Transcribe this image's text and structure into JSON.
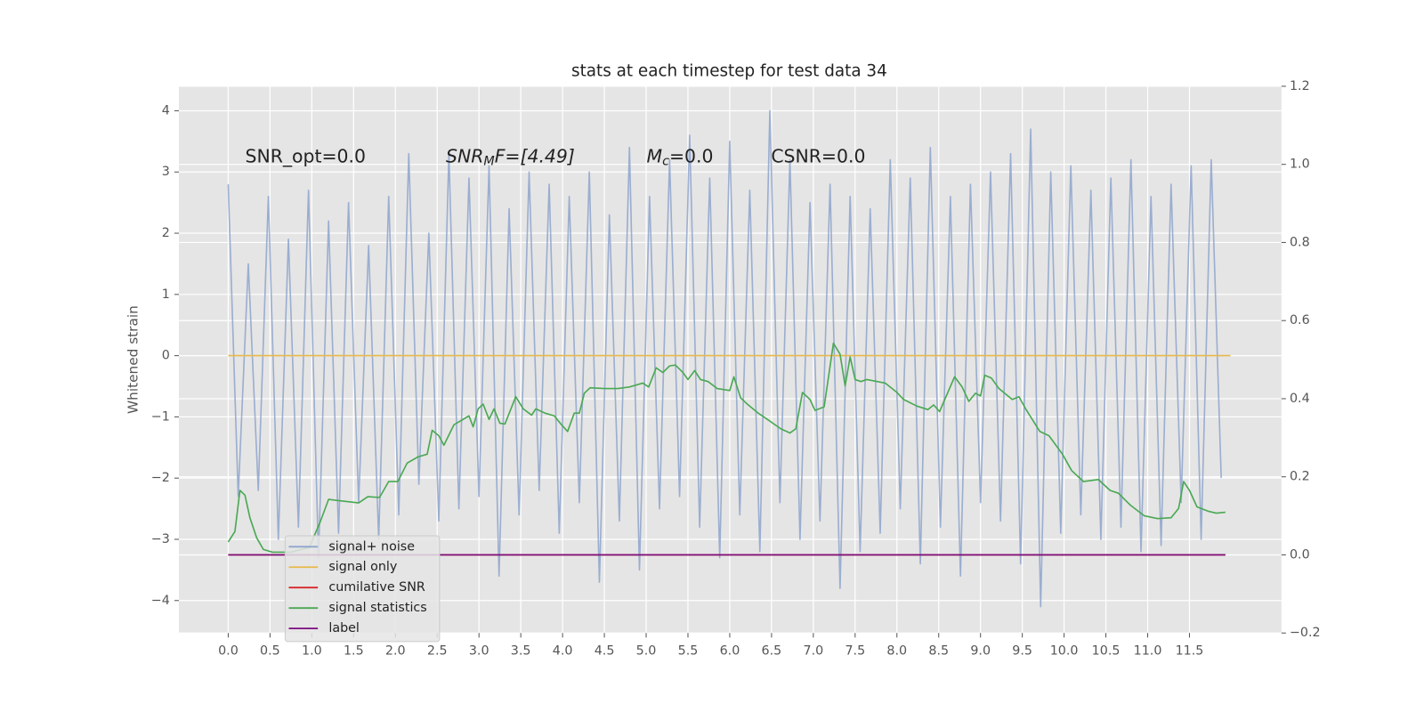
{
  "chart_data": {
    "type": "line",
    "title": "stats at each timestep for test data 34",
    "y_label": "Whitened strain",
    "annotations": [
      {
        "text": "SNR_opt=0.0"
      },
      {
        "base": "SNR",
        "sub": "M",
        "tail": "F=[4.49]"
      },
      {
        "base": "M",
        "sub": "c",
        "tail": "=0.0"
      },
      {
        "text": "CSNR=0.0"
      }
    ],
    "xlim": [
      -0.59,
      12.6
    ],
    "ylim": [
      -4.53,
      4.4
    ],
    "y2lim": [
      -0.2,
      1.2
    ],
    "xticks": [
      {
        "value": 0,
        "label": "0.0"
      },
      0.5,
      {
        "value": 1,
        "label": "1.0"
      },
      1.5,
      {
        "value": 2,
        "label": "2.0"
      },
      2.5,
      {
        "value": 3,
        "label": "3.0"
      },
      3.5,
      {
        "value": 4,
        "label": "4.0"
      },
      4.5,
      {
        "value": 5,
        "label": "5.0"
      },
      5.5,
      {
        "value": 6,
        "label": "6.0"
      },
      6.5,
      {
        "value": 7,
        "label": "7.0"
      },
      7.5,
      {
        "value": 8,
        "label": "8.0"
      },
      8.5,
      {
        "value": 9,
        "label": "9.0"
      },
      9.5,
      {
        "value": 10,
        "label": "10.0"
      },
      10.5,
      {
        "value": 11,
        "label": "11.0"
      },
      11.5
    ],
    "yticks": [
      {
        "value": -4,
        "label": "−4"
      },
      {
        "value": -3,
        "label": "−3"
      },
      {
        "value": -2,
        "label": "−2"
      },
      {
        "value": -1,
        "label": "−1"
      },
      0,
      1,
      2,
      3,
      4
    ],
    "y2ticks": [
      {
        "value": -0.2,
        "label": "−0.2"
      },
      {
        "value": 0,
        "label": "0.0"
      },
      0.2,
      0.4,
      0.6,
      0.8,
      {
        "value": 1,
        "label": "1.0"
      },
      1.2
    ],
    "grid": true,
    "legend": "lower left",
    "series": [
      {
        "name": "signal+ noise",
        "color": "#8ea5cc",
        "x": [
          0,
          0.12,
          0.24,
          0.36,
          0.48,
          0.6,
          0.72,
          0.84,
          0.96,
          1.08,
          1.2,
          1.32,
          1.44,
          1.56,
          1.68,
          1.8,
          1.92,
          2.04,
          2.16,
          2.28,
          2.4,
          2.52,
          2.64,
          2.76,
          2.88,
          3,
          3.12,
          3.24,
          3.36,
          3.48,
          3.6,
          3.72,
          3.84,
          3.96,
          4.08,
          4.2,
          4.32,
          4.44,
          4.56,
          4.68,
          4.8,
          4.92,
          5.04,
          5.16,
          5.28,
          5.4,
          5.52,
          5.64,
          5.76,
          5.88,
          6,
          6.12,
          6.24,
          6.36,
          6.48,
          6.6,
          6.72,
          6.84,
          6.96,
          7.08,
          7.2,
          7.32,
          7.44,
          7.56,
          7.68,
          7.8,
          7.92,
          8.04,
          8.16,
          8.28,
          8.4,
          8.52,
          8.64,
          8.76,
          8.88,
          9,
          9.12,
          9.24,
          9.36,
          9.48,
          9.6,
          9.72,
          9.84,
          9.96,
          10.08,
          10.2,
          10.32,
          10.44,
          10.56,
          10.68,
          10.8,
          10.92,
          11.04,
          11.16,
          11.28,
          11.4,
          11.52,
          11.64,
          11.76,
          11.88
        ],
        "values": [
          2.8,
          -2.3,
          1.5,
          -2.2,
          2.6,
          -3.0,
          1.9,
          -2.8,
          2.7,
          -3.3,
          2.2,
          -2.9,
          2.5,
          -2.4,
          1.8,
          -3.0,
          2.6,
          -2.6,
          3.3,
          -2.1,
          2.0,
          -2.7,
          3.3,
          -2.5,
          2.9,
          -2.3,
          3.1,
          -3.6,
          2.4,
          -2.6,
          3.0,
          -2.2,
          2.8,
          -2.9,
          2.6,
          -2.4,
          3.0,
          -3.7,
          2.3,
          -2.7,
          3.4,
          -3.5,
          2.6,
          -2.5,
          3.2,
          -2.3,
          3.6,
          -2.8,
          2.9,
          -3.3,
          3.5,
          -2.6,
          2.7,
          -3.2,
          4.0,
          -2.4,
          3.2,
          -3.0,
          2.5,
          -2.7,
          2.8,
          -3.8,
          2.6,
          -3.2,
          2.4,
          -2.9,
          3.2,
          -2.5,
          2.9,
          -3.4,
          3.4,
          -2.8,
          2.6,
          -3.6,
          2.8,
          -2.4,
          3.0,
          -2.7,
          3.3,
          -3.4,
          3.7,
          -4.1,
          3.0,
          -2.9,
          3.1,
          -2.6,
          2.7,
          -3.0,
          2.9,
          -2.8,
          3.2,
          -3.2,
          2.6,
          -3.1,
          2.8,
          -2.4,
          3.1,
          -3.0,
          3.2,
          -2.0
        ]
      },
      {
        "name": "signal only",
        "color": "#e8b94a",
        "x": [
          0,
          11.99
        ],
        "values": [
          0,
          0
        ]
      },
      {
        "name": "cumilative SNR",
        "color": "#d62728",
        "axis": "y2",
        "x": [
          0,
          11.93
        ],
        "values": [
          0,
          0
        ]
      },
      {
        "name": "signal statistics",
        "color": "#4aa853",
        "axis": "y2",
        "x": [
          0,
          0.08,
          0.14,
          0.2,
          0.26,
          0.34,
          0.42,
          0.53,
          0.75,
          0.97,
          1.1,
          1.2,
          1.4,
          1.56,
          1.67,
          1.81,
          1.92,
          2.03,
          2.14,
          2.27,
          2.38,
          2.44,
          2.52,
          2.58,
          2.7,
          2.88,
          2.93,
          2.99,
          3.05,
          3.12,
          3.18,
          3.25,
          3.31,
          3.44,
          3.53,
          3.63,
          3.68,
          3.79,
          3.9,
          3.98,
          4.06,
          4.14,
          4.2,
          4.26,
          4.33,
          4.5,
          4.66,
          4.8,
          4.96,
          5.03,
          5.12,
          5.2,
          5.28,
          5.35,
          5.44,
          5.5,
          5.58,
          5.65,
          5.74,
          5.85,
          6.0,
          6.05,
          6.13,
          6.21,
          6.34,
          6.45,
          6.61,
          6.72,
          6.79,
          6.87,
          6.96,
          7.02,
          7.13,
          7.24,
          7.32,
          7.38,
          7.44,
          7.5,
          7.57,
          7.64,
          7.86,
          8.0,
          8.08,
          8.24,
          8.37,
          8.44,
          8.51,
          8.69,
          8.78,
          8.86,
          8.94,
          9.0,
          9.05,
          9.13,
          9.22,
          9.38,
          9.46,
          9.54,
          9.71,
          9.82,
          9.98,
          10.09,
          10.23,
          10.41,
          10.55,
          10.65,
          10.79,
          10.96,
          11.12,
          11.28,
          11.37,
          11.43,
          11.5,
          11.59,
          11.72,
          11.82,
          11.93
        ],
        "values": [
          0.033,
          0.06,
          0.165,
          0.153,
          0.095,
          0.044,
          0.014,
          0.007,
          0.007,
          0.019,
          0.084,
          0.142,
          0.137,
          0.133,
          0.149,
          0.147,
          0.188,
          0.188,
          0.235,
          0.251,
          0.258,
          0.319,
          0.305,
          0.281,
          0.333,
          0.356,
          0.328,
          0.374,
          0.386,
          0.347,
          0.374,
          0.337,
          0.335,
          0.405,
          0.374,
          0.358,
          0.374,
          0.363,
          0.356,
          0.335,
          0.316,
          0.363,
          0.363,
          0.414,
          0.428,
          0.426,
          0.426,
          0.43,
          0.44,
          0.43,
          0.479,
          0.467,
          0.484,
          0.486,
          0.467,
          0.449,
          0.472,
          0.449,
          0.444,
          0.426,
          0.421,
          0.456,
          0.402,
          0.386,
          0.363,
          0.347,
          0.323,
          0.312,
          0.323,
          0.416,
          0.398,
          0.37,
          0.379,
          0.542,
          0.514,
          0.433,
          0.507,
          0.449,
          0.444,
          0.449,
          0.44,
          0.416,
          0.398,
          0.381,
          0.372,
          0.384,
          0.367,
          0.456,
          0.43,
          0.393,
          0.414,
          0.407,
          0.46,
          0.453,
          0.426,
          0.398,
          0.405,
          0.374,
          0.316,
          0.305,
          0.258,
          0.216,
          0.188,
          0.193,
          0.165,
          0.158,
          0.128,
          0.1,
          0.093,
          0.095,
          0.119,
          0.188,
          0.165,
          0.123,
          0.112,
          0.107,
          0.109
        ]
      },
      {
        "name": "label",
        "color": "#7b0d7e",
        "axis": "y2",
        "x": [
          0,
          11.93
        ],
        "values": [
          0,
          0
        ]
      }
    ]
  }
}
